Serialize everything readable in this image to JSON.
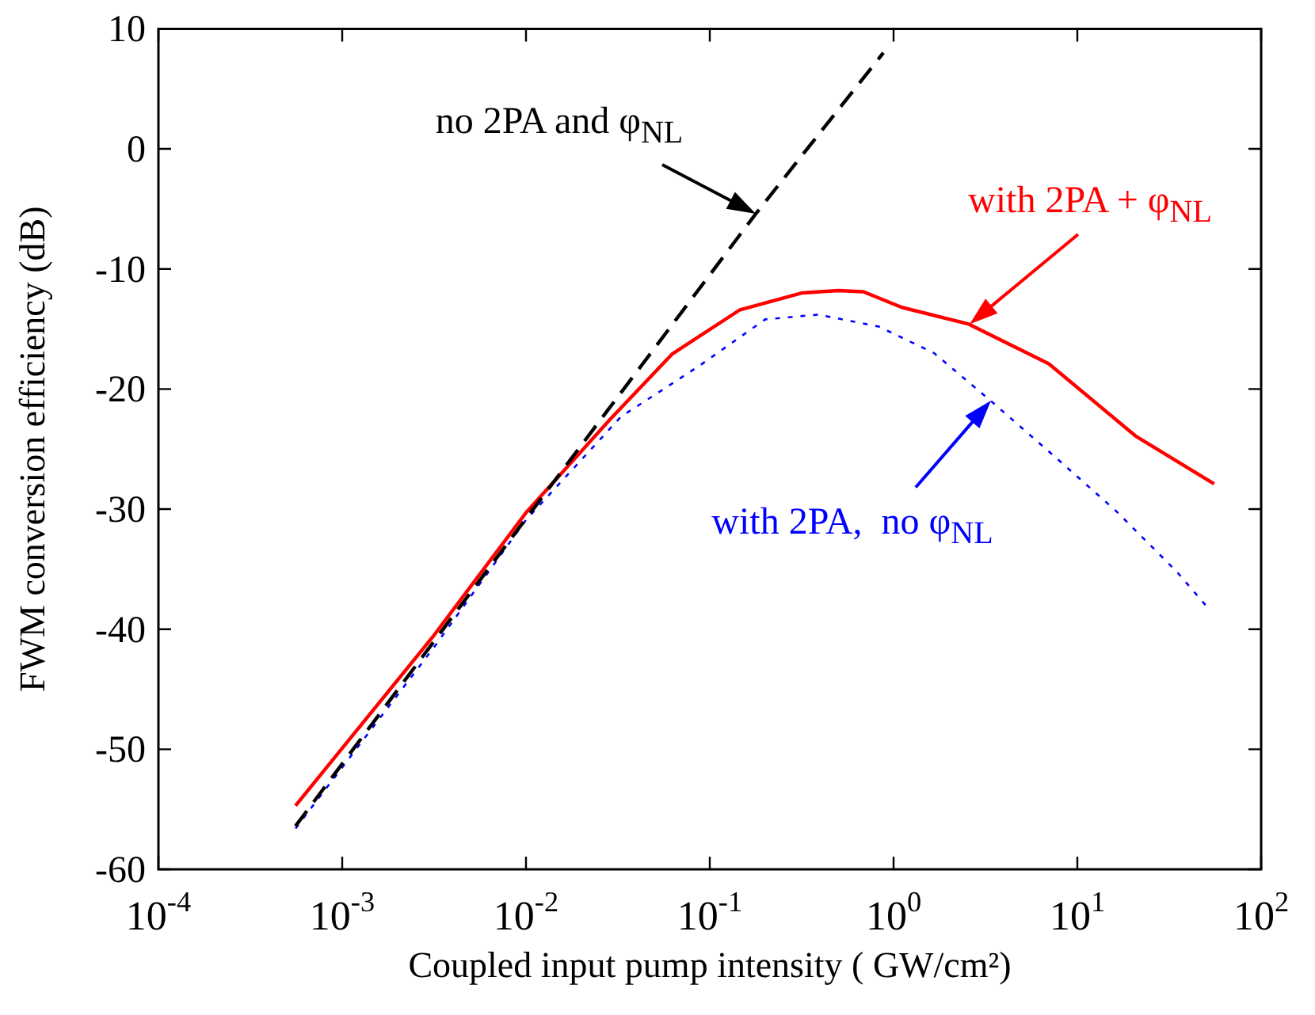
{
  "chart_data": {
    "type": "line",
    "xlabel": "Coupled input pump intensity ( GW/cm²)",
    "ylabel": "FWM conversion efficiency (dB)",
    "log": "x",
    "grid": false,
    "legend": false,
    "marker": "none",
    "xlim": [
      0.0001,
      100
    ],
    "xticks": [
      {
        "value": 0.0001,
        "label": "10$^{-4}$"
      },
      {
        "value": 0.001,
        "label": "10$^{-3}$"
      },
      {
        "value": 0.01,
        "label": "10$^{-2}$"
      },
      {
        "value": 0.1,
        "label": "10$^{-1}$"
      },
      {
        "value": 1,
        "label": "10$^{0}$"
      },
      {
        "value": 10,
        "label": "10$^{1}$"
      },
      {
        "value": 100,
        "label": "10$^{2}$"
      }
    ],
    "ylim": [
      -60,
      10
    ],
    "yticks": [
      -60,
      -50,
      -40,
      -30,
      -20,
      -10,
      0,
      10
    ],
    "annotations": [
      {
        "text": "no 2PA and φ$_{NL}$",
        "x": 0.178,
        "y": -5.4
      },
      {
        "text": "with 2PA + φ$_{NL}$",
        "x": 2.57,
        "y": -14.6
      },
      {
        "text": "with 2PA,  no φ$_{NL}$",
        "x": 3.39,
        "y": -21.0
      }
    ],
    "series": [
      {
        "color": "#000000",
        "line_style": "dashed",
        "x": [
          0.000557,
          0.01,
          0.178,
          0.88
        ],
        "values": [
          -56.4,
          -30.8,
          -5.4,
          8
        ]
      },
      {
        "color": "#ff0000",
        "line_style": "solid",
        "x": [
          0.000557,
          0.00316,
          0.01,
          0.0288,
          0.0622,
          0.146,
          0.316,
          0.501,
          0.685,
          1.11,
          2.57,
          7.0,
          20.7,
          55.5
        ],
        "values": [
          -54.7,
          -40.5,
          -30.3,
          -22.5,
          -17.1,
          -13.4,
          -12.0,
          -11.8,
          -11.9,
          -13.2,
          -14.6,
          -17.9,
          -23.9,
          -27.9
        ]
      },
      {
        "color": "#0000ff",
        "line_style": "dotted",
        "x": [
          0.000557,
          0.00316,
          0.01,
          0.0329,
          0.0871,
          0.2,
          0.389,
          0.832,
          1.66,
          3.39,
          7.0,
          16.1,
          34.7,
          52.5
        ],
        "values": [
          -56.6,
          -41.5,
          -30.9,
          -22.3,
          -18.1,
          -14.2,
          -13.8,
          -14.8,
          -17.0,
          -21.0,
          -25.2,
          -30.1,
          -35.2,
          -38.4
        ]
      }
    ]
  }
}
